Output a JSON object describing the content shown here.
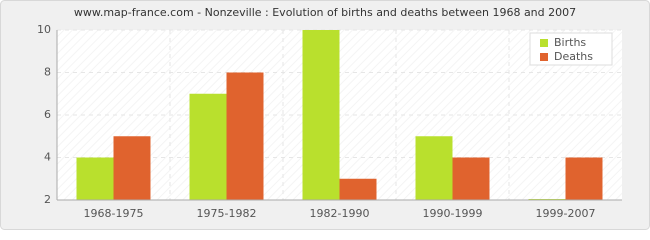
{
  "chart_data": {
    "type": "bar",
    "title": "www.map-france.com - Nonzeville : Evolution of births and deaths between 1968 and 2007",
    "categories": [
      "1968-1975",
      "1975-1982",
      "1982-1990",
      "1990-1999",
      "1999-2007"
    ],
    "series": [
      {
        "name": "Births",
        "color": "#b9e02d",
        "values": [
          4,
          7,
          10,
          5,
          2
        ]
      },
      {
        "name": "Deaths",
        "color": "#e0632e",
        "values": [
          5,
          8,
          3,
          4,
          4
        ]
      }
    ],
    "ylim": [
      2,
      10
    ],
    "yticks": [
      2,
      4,
      6,
      8,
      10
    ],
    "grid": true,
    "legend": "top-right"
  }
}
